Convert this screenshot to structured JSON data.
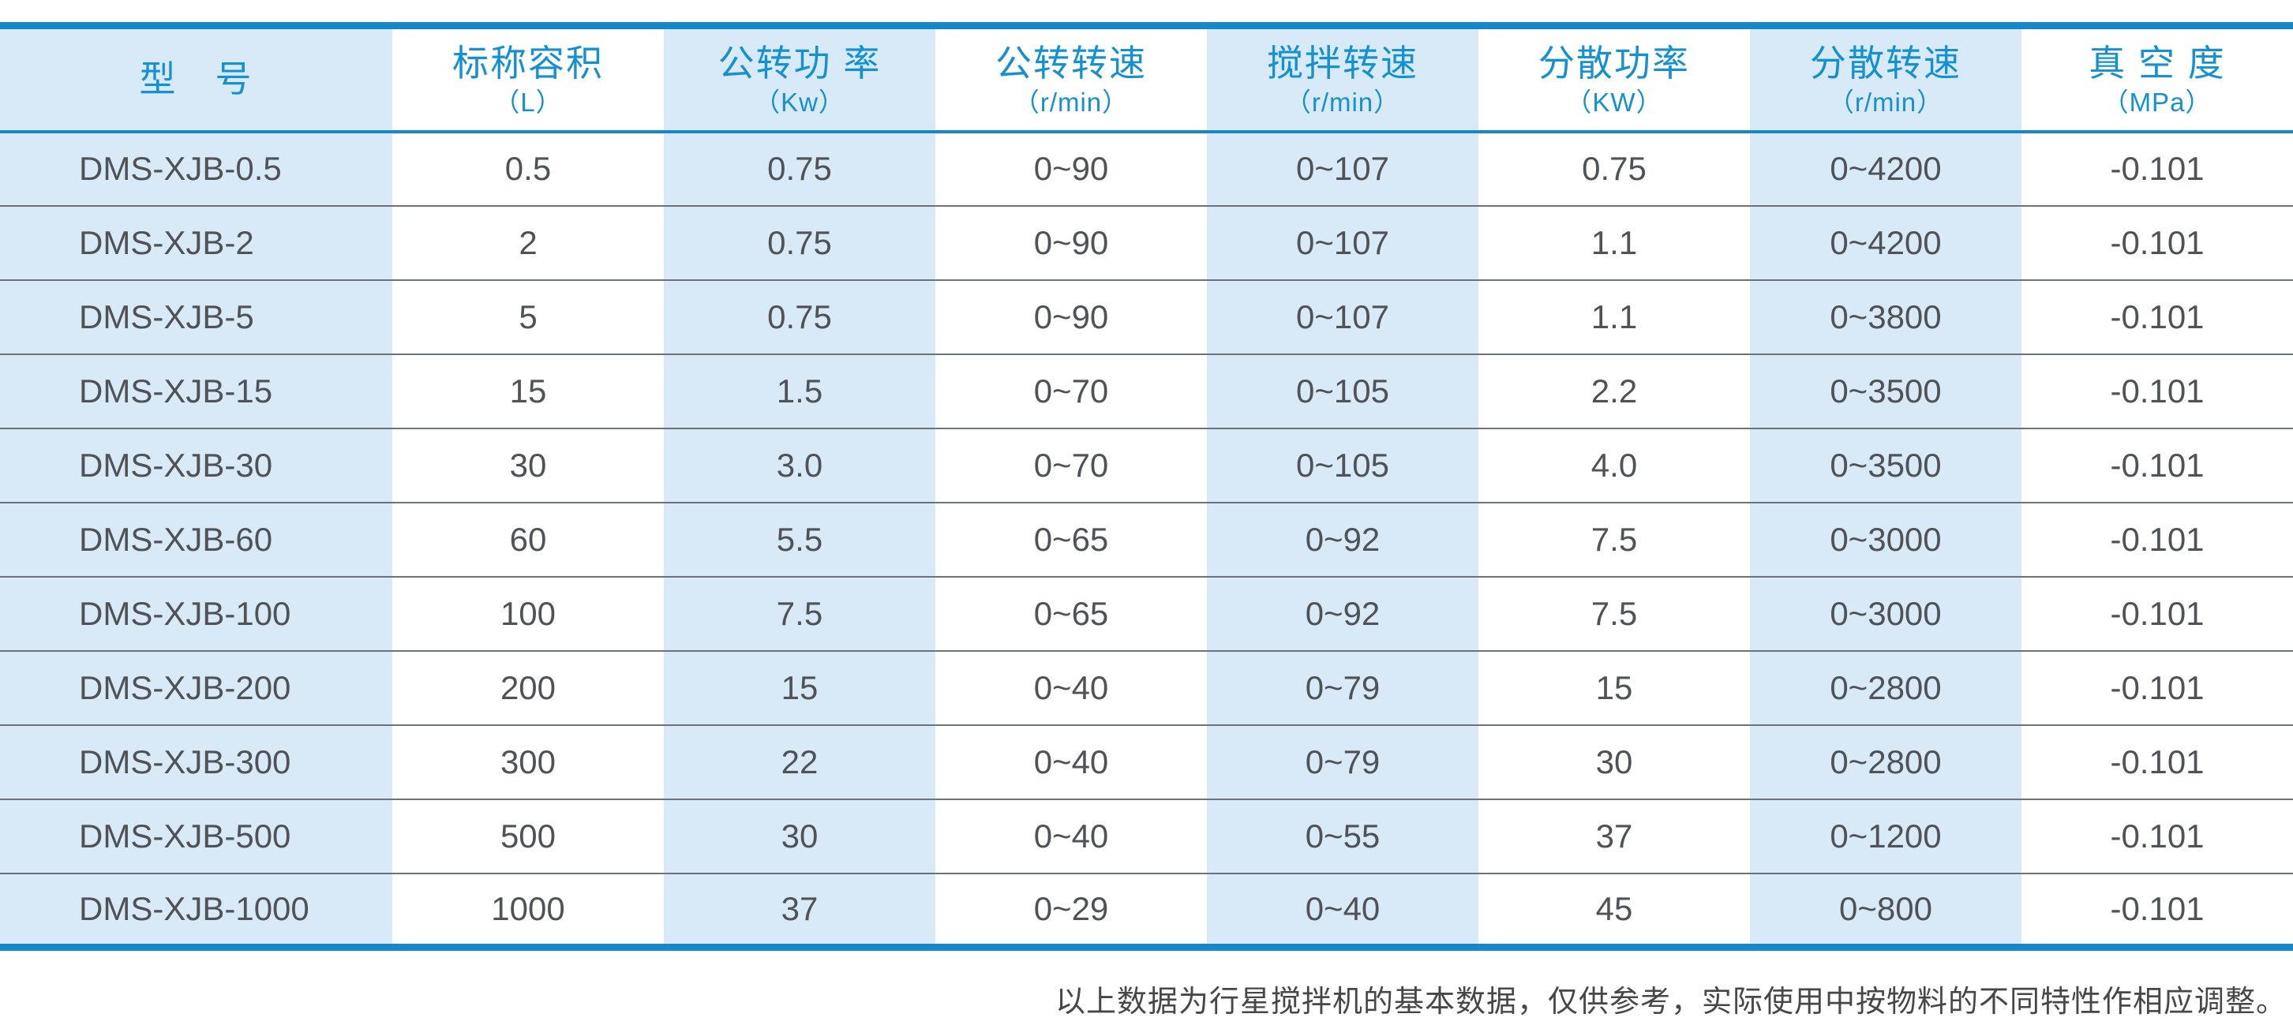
{
  "colors": {
    "accent_blue": "#1588cb",
    "header_text_blue": "#1590d0",
    "light_blue_column_bg": "#d8eaf8",
    "white_column_bg": "#ffffff",
    "body_text": "#4f5256",
    "row_divider_gray": "#6d7277",
    "footnote_text": "#474747"
  },
  "table": {
    "columns": [
      {
        "title": "型　号",
        "unit": ""
      },
      {
        "title": "标称容积",
        "unit": "（L）"
      },
      {
        "title": "公转功 率",
        "unit": "（Kw）"
      },
      {
        "title": "公转转速",
        "unit": "（r/min）"
      },
      {
        "title": "搅拌转速",
        "unit": "（r/min）"
      },
      {
        "title": "分散功率",
        "unit": "（KW）"
      },
      {
        "title": "分散转速",
        "unit": "（r/min）"
      },
      {
        "title": "真 空 度",
        "unit": "（MPa）"
      }
    ],
    "rows": [
      [
        "DMS-XJB-0.5",
        "0.5",
        "0.75",
        "0~90",
        "0~107",
        "0.75",
        "0~4200",
        "-0.101"
      ],
      [
        "DMS-XJB-2",
        "2",
        "0.75",
        "0~90",
        "0~107",
        "1.1",
        "0~4200",
        "-0.101"
      ],
      [
        "DMS-XJB-5",
        "5",
        "0.75",
        "0~90",
        "0~107",
        "1.1",
        "0~3800",
        "-0.101"
      ],
      [
        "DMS-XJB-15",
        "15",
        "1.5",
        "0~70",
        "0~105",
        "2.2",
        "0~3500",
        "-0.101"
      ],
      [
        "DMS-XJB-30",
        "30",
        "3.0",
        "0~70",
        "0~105",
        "4.0",
        "0~3500",
        "-0.101"
      ],
      [
        "DMS-XJB-60",
        "60",
        "5.5",
        "0~65",
        "0~92",
        "7.5",
        "0~3000",
        "-0.101"
      ],
      [
        "DMS-XJB-100",
        "100",
        "7.5",
        "0~65",
        "0~92",
        "7.5",
        "0~3000",
        "-0.101"
      ],
      [
        "DMS-XJB-200",
        "200",
        "15",
        "0~40",
        "0~79",
        "15",
        "0~2800",
        "-0.101"
      ],
      [
        "DMS-XJB-300",
        "300",
        "22",
        "0~40",
        "0~79",
        "30",
        "0~2800",
        "-0.101"
      ],
      [
        "DMS-XJB-500",
        "500",
        "30",
        "0~40",
        "0~55",
        "37",
        "0~1200",
        "-0.101"
      ],
      [
        "DMS-XJB-1000",
        "1000",
        "37",
        "0~29",
        "0~40",
        "45",
        "0~800",
        "-0.101"
      ]
    ]
  },
  "footnote": "以上数据为行星搅拌机的基本数据，仅供参考，实际使用中按物料的不同特性作相应调整。"
}
